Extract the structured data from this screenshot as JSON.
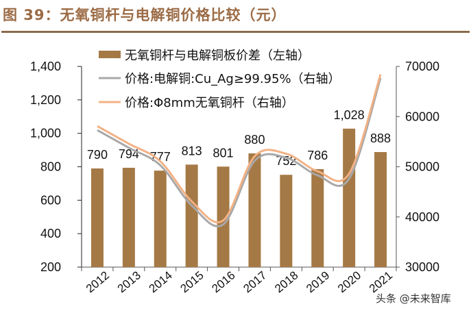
{
  "title": "图 39：无氧铜杆与电解铜价格比较（元）",
  "watermark": "头条 @未来智库",
  "colors": {
    "bar": "#a57945",
    "grey_line": "#a8a8a8",
    "orange_line": "#f2b184",
    "title": "#9b6b45"
  },
  "legend": [
    {
      "label": "无氧铜杆与电解铜板价差（左轴）",
      "type": "bar"
    },
    {
      "label": "价格:电解铜:Cu_Ag≥99.95%（右轴）",
      "type": "line"
    },
    {
      "label": "价格:Φ8mm无氧铜杆（右轴）",
      "type": "line"
    }
  ],
  "chart_data": {
    "type": "bar",
    "title": "图 39：无氧铜杆与电解铜价格比较（元）",
    "categories": [
      "2012",
      "2013",
      "2014",
      "2015",
      "2016",
      "2017",
      "2018",
      "2019",
      "2020",
      "2021"
    ],
    "series": [
      {
        "name": "无氧铜杆与电解铜板价差（左轴）",
        "type": "bar",
        "axis": "left",
        "values": [
          790,
          794,
          777,
          813,
          801,
          880,
          752,
          786,
          1028,
          888
        ],
        "labels": [
          "790",
          "794",
          "777",
          "813",
          "801",
          "880",
          "752",
          "786",
          "1,028",
          "888"
        ]
      },
      {
        "name": "价格:电解铜:Cu_Ag≥99.95%（右轴）",
        "type": "line",
        "axis": "right",
        "values": [
          57300,
          53800,
          50300,
          42300,
          38500,
          51200,
          51800,
          48300,
          47600,
          67700
        ]
      },
      {
        "name": "价格:Φ8mm无氧铜杆（右轴）",
        "type": "line",
        "axis": "right",
        "values": [
          58100,
          54600,
          51100,
          43100,
          39300,
          52100,
          52600,
          49100,
          48600,
          68400
        ]
      }
    ],
    "left_axis": {
      "ylim": [
        200,
        1400
      ],
      "ticks": [
        "200",
        "400",
        "600",
        "800",
        "1,000",
        "1,200",
        "1,400"
      ]
    },
    "right_axis": {
      "ylim": [
        30000,
        70000
      ],
      "ticks": [
        "30000",
        "40000",
        "50000",
        "60000",
        "70000"
      ]
    },
    "xlabel": "",
    "ylabel": "",
    "grid": false,
    "legend_position": "top-left inside"
  }
}
